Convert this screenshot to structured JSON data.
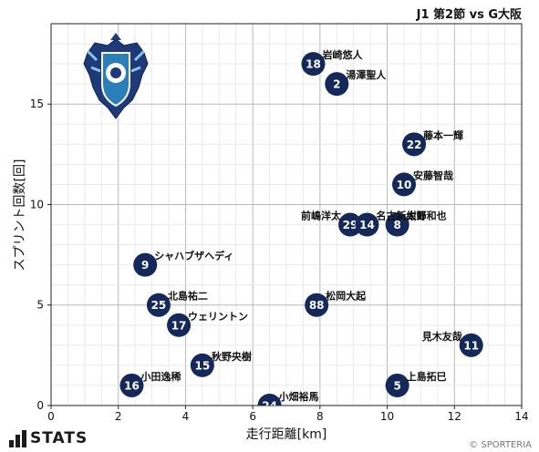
{
  "chart_data": {
    "type": "scatter",
    "title": "J1 第2節 vs G大阪",
    "xlabel": "走行距離[km]",
    "ylabel": "スプリント回数[回]",
    "xlim": [
      0,
      14
    ],
    "ylim": [
      0,
      19
    ],
    "xticks": [
      0,
      2,
      4,
      6,
      8,
      10,
      12,
      14
    ],
    "yticks": [
      0,
      5,
      10,
      15
    ],
    "grid": true,
    "marker_color": "#14285a",
    "points": [
      {
        "num": "18",
        "name": "岩崎悠人",
        "x": 7.8,
        "y": 17
      },
      {
        "num": "2",
        "name": "湯澤聖人",
        "x": 8.5,
        "y": 16
      },
      {
        "num": "22",
        "name": "藤本一輝",
        "x": 10.8,
        "y": 13
      },
      {
        "num": "10",
        "name": "安藤智哉",
        "x": 10.5,
        "y": 11
      },
      {
        "num": "29",
        "name": "前嶋洋太",
        "x": 8.9,
        "y": 9
      },
      {
        "num": "14",
        "name": "名古新太郎",
        "x": 9.4,
        "y": 9
      },
      {
        "num": "8",
        "name": "紺野和也",
        "x": 10.3,
        "y": 9
      },
      {
        "num": "9",
        "name": "シャハブザヘディ",
        "x": 2.8,
        "y": 7
      },
      {
        "num": "25",
        "name": "北島祐二",
        "x": 3.2,
        "y": 5
      },
      {
        "num": "88",
        "name": "松岡大起",
        "x": 7.9,
        "y": 5
      },
      {
        "num": "17",
        "name": "ウェリントン",
        "x": 3.8,
        "y": 4
      },
      {
        "num": "11",
        "name": "見木友哉",
        "x": 12.5,
        "y": 3
      },
      {
        "num": "15",
        "name": "秋野央樹",
        "x": 4.5,
        "y": 2
      },
      {
        "num": "16",
        "name": "小田逸稀",
        "x": 2.4,
        "y": 1
      },
      {
        "num": "5",
        "name": "上島拓巳",
        "x": 10.3,
        "y": 1
      },
      {
        "num": "24",
        "name": "小畑裕馬",
        "x": 6.5,
        "y": 0
      }
    ]
  },
  "footer": {
    "brand": "STATS",
    "credit": "© SPORTERIA"
  }
}
